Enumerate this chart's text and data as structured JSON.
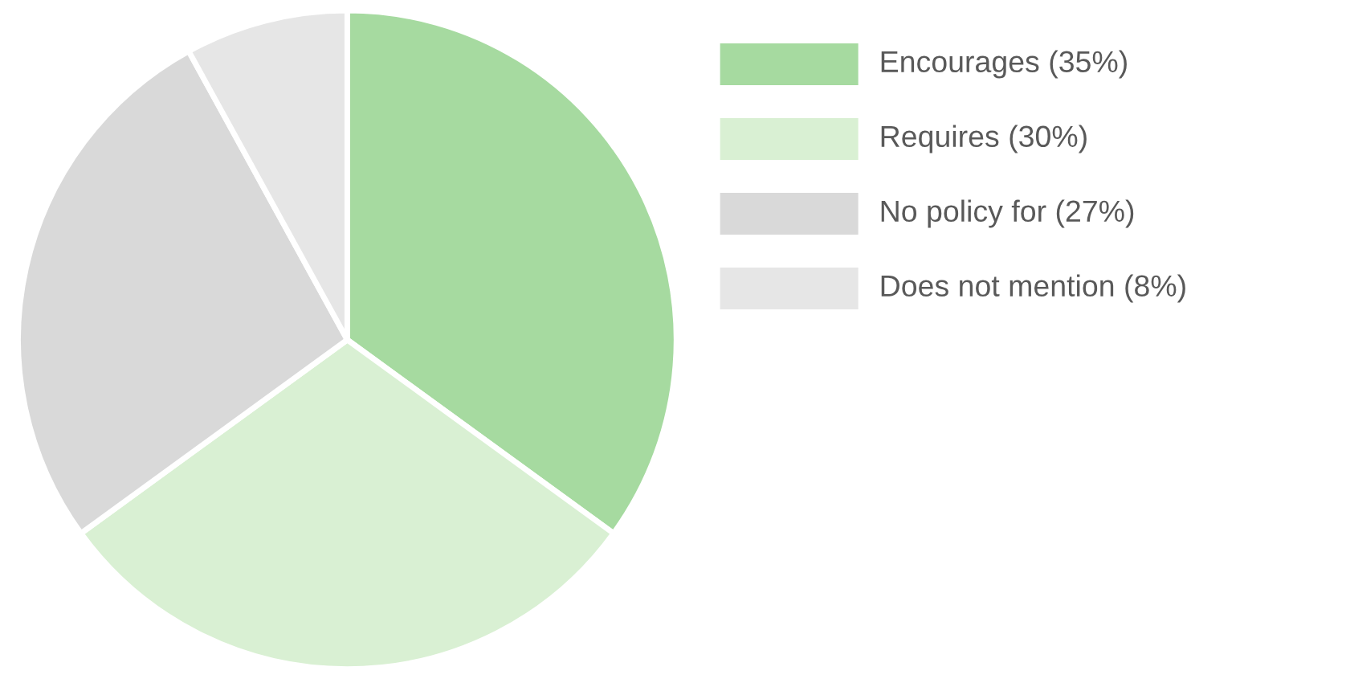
{
  "chart_data": {
    "type": "pie",
    "categories": [
      "Encourages (35%)",
      "Requires (30%)",
      "No policy for (27%)",
      "Does not mention (8%)"
    ],
    "values": [
      35,
      30,
      27,
      8
    ],
    "colors": [
      "#a6daa0",
      "#d9f0d3",
      "#d9d9d9",
      "#e6e6e6"
    ],
    "legend": "right"
  }
}
